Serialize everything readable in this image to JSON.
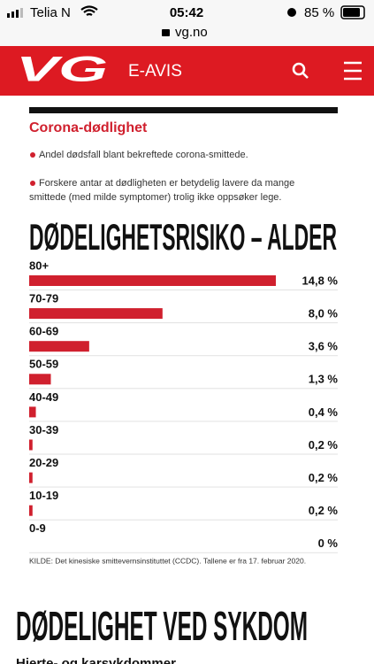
{
  "status_bar": {
    "carrier": "Telia N",
    "time": "05:42",
    "battery": "85 %",
    "url": "vg.no"
  },
  "nav": {
    "logo": "VG",
    "section": "E-AVIS"
  },
  "chart_data": {
    "type": "bar",
    "orientation": "horizontal",
    "subtitle": "Corona-dødlighet",
    "notes": [
      "Andel dødsfall blant bekreftede corona-smittede.",
      "Forskere antar at dødligheten er betydelig lavere da mange",
      "smittede (med milde symptomer) trolig ikke oppsøker lege."
    ],
    "title": "DØDELIGHETSRISIKO – ALDER",
    "categories": [
      "80+",
      "70-79",
      "60-69",
      "50-59",
      "40-49",
      "30-39",
      "20-29",
      "10-19",
      "0-9"
    ],
    "values": [
      14.8,
      8.0,
      3.6,
      1.3,
      0.4,
      0.2,
      0.2,
      0.2,
      0
    ],
    "value_labels": [
      "14,8 %",
      "8,0 %",
      "3,6 %",
      "1,3 %",
      "0,4 %",
      "0,2 %",
      "0,2 %",
      "0,2 %",
      "0 %"
    ],
    "color": "#d0202e",
    "source": "KILDE: Det kinesiske smittevernsinstituttet (CCDC). Tallene er fra 17. februar 2020."
  },
  "next_section": {
    "title": "DØDELIGHET VED SYKDOM",
    "subtitle": "Hjerte- og karsykdommer"
  }
}
